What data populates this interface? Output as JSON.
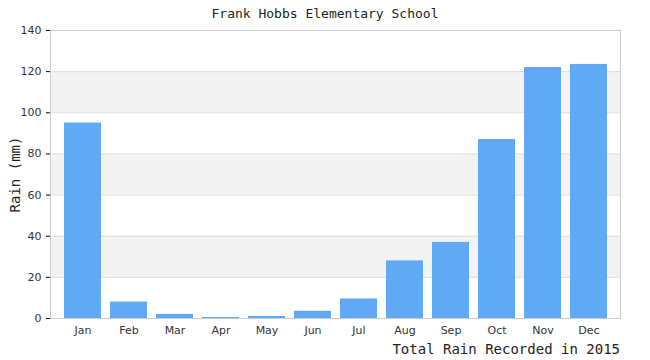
{
  "chart_data": {
    "type": "bar",
    "title": "Frank Hobbs Elementary School",
    "caption": "Total Rain Recorded in 2015",
    "ylabel": "Rain (mm)",
    "categories": [
      "Jan",
      "Feb",
      "Mar",
      "Apr",
      "May",
      "Jun",
      "Jul",
      "Aug",
      "Sep",
      "Oct",
      "Nov",
      "Dec"
    ],
    "values": [
      95,
      8,
      2,
      0.5,
      1,
      3.5,
      9.5,
      28,
      37,
      87,
      122,
      123.5
    ],
    "color": "#60aaf5",
    "ylim": [
      0,
      140
    ],
    "yticks": [
      0,
      20,
      40,
      60,
      80,
      100,
      120,
      140
    ],
    "grid": true
  }
}
